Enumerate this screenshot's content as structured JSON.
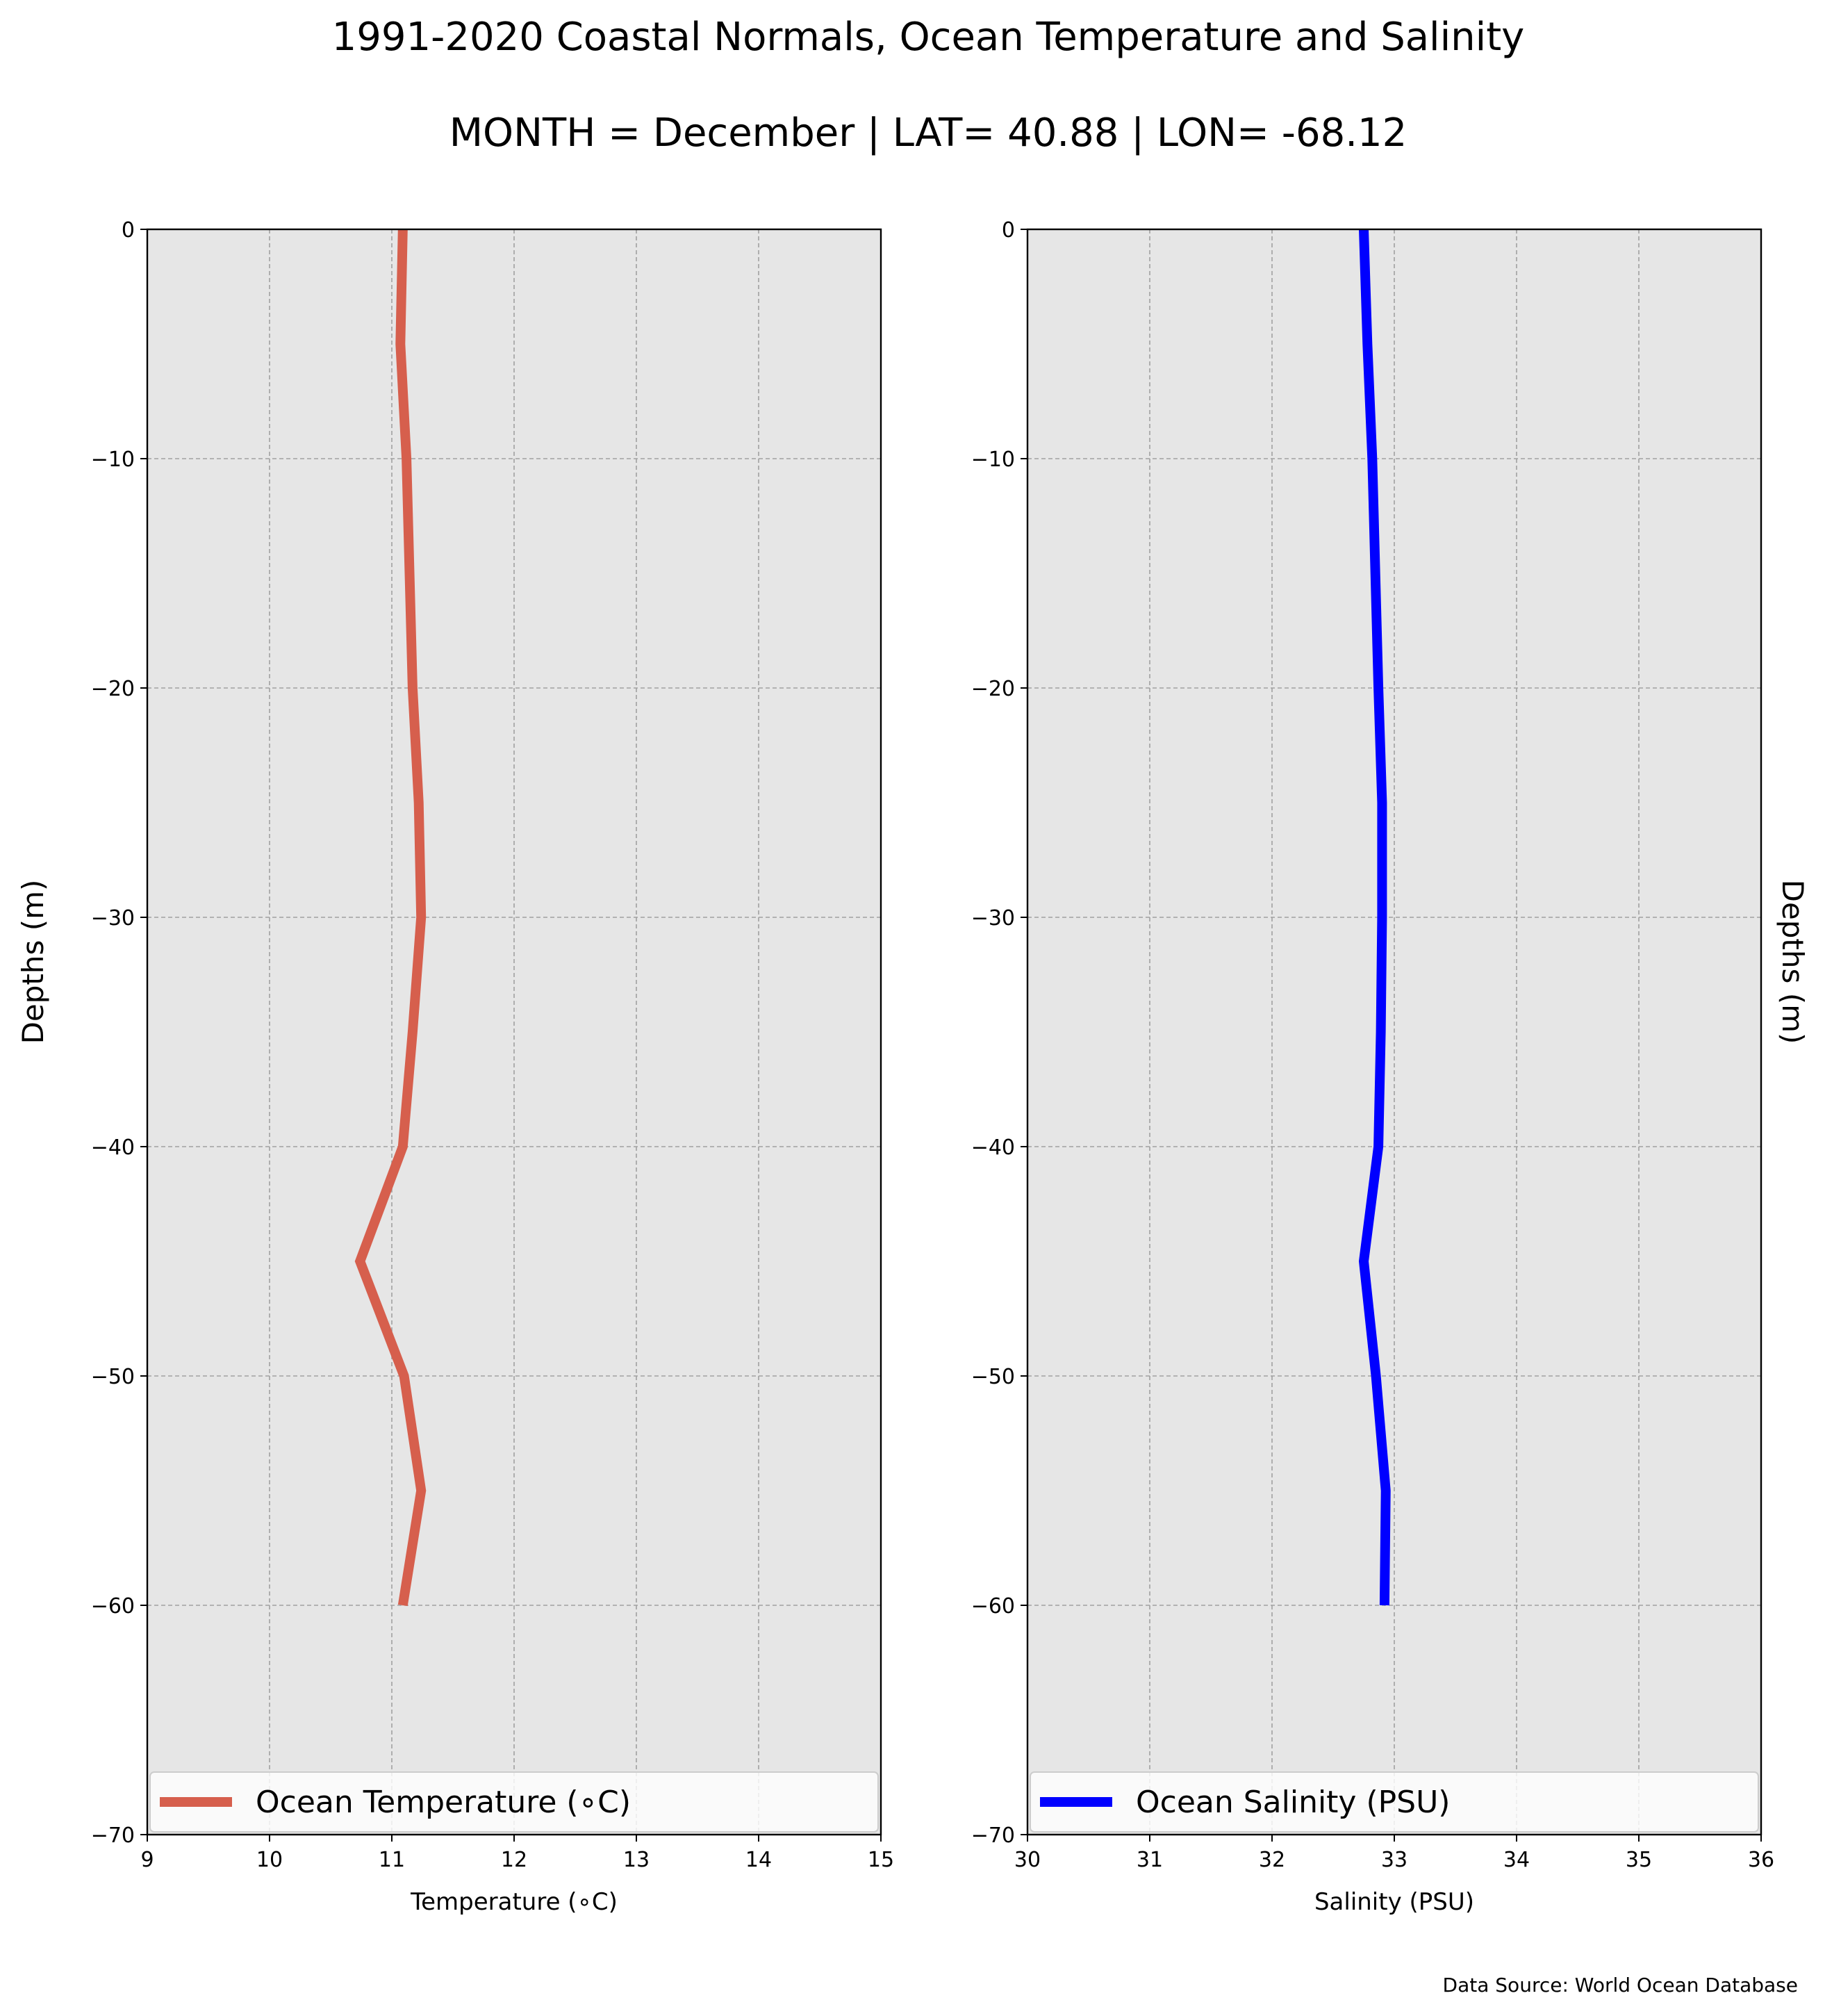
{
  "title": "1991-2020 Coastal Normals, Ocean Temperature and Salinity",
  "subtitle": "MONTH = December | LAT= 40.88 | LON= -68.12",
  "source": "Data Source: World Ocean Database",
  "chart_data": [
    {
      "type": "line",
      "xlabel": "Temperature (∘C)",
      "ylabel": "Depths (m)",
      "xlim": [
        9,
        15
      ],
      "ylim": [
        -70,
        0
      ],
      "xticks": [
        "9",
        "10",
        "11",
        "12",
        "13",
        "14",
        "15"
      ],
      "yticks": [
        "0",
        "−10",
        "−20",
        "−30",
        "−40",
        "−50",
        "−60",
        "−70"
      ],
      "grid": true,
      "legend_position": "bottom",
      "series": [
        {
          "name": "Ocean Temperature (∘C)",
          "color": "#d65f4d",
          "x": [
            11.09,
            11.07,
            11.12,
            11.17,
            11.22,
            11.24,
            11.17,
            11.09,
            10.74,
            11.1,
            11.24,
            11.09
          ],
          "y": [
            0,
            -5,
            -10,
            -20,
            -25,
            -30,
            -35,
            -40,
            -45,
            -50,
            -55,
            -60
          ]
        }
      ]
    },
    {
      "type": "line",
      "xlabel": "Salinity (PSU)",
      "ylabel": "Depths (m)",
      "xlim": [
        30,
        36
      ],
      "ylim": [
        -70,
        0
      ],
      "xticks": [
        "30",
        "31",
        "32",
        "33",
        "34",
        "35",
        "36"
      ],
      "yticks": [
        "0",
        "−10",
        "−20",
        "−30",
        "−40",
        "−50",
        "−60",
        "−70"
      ],
      "grid": true,
      "legend_position": "bottom",
      "series": [
        {
          "name": "Ocean Salinity (PSU)",
          "color": "#0000ff",
          "x": [
            32.75,
            32.78,
            32.82,
            32.87,
            32.9,
            32.9,
            32.89,
            32.87,
            32.75,
            32.85,
            32.93,
            32.92
          ],
          "y": [
            0,
            -5,
            -10,
            -20,
            -25,
            -30,
            -35,
            -40,
            -45,
            -50,
            -55,
            -60
          ]
        }
      ]
    }
  ]
}
